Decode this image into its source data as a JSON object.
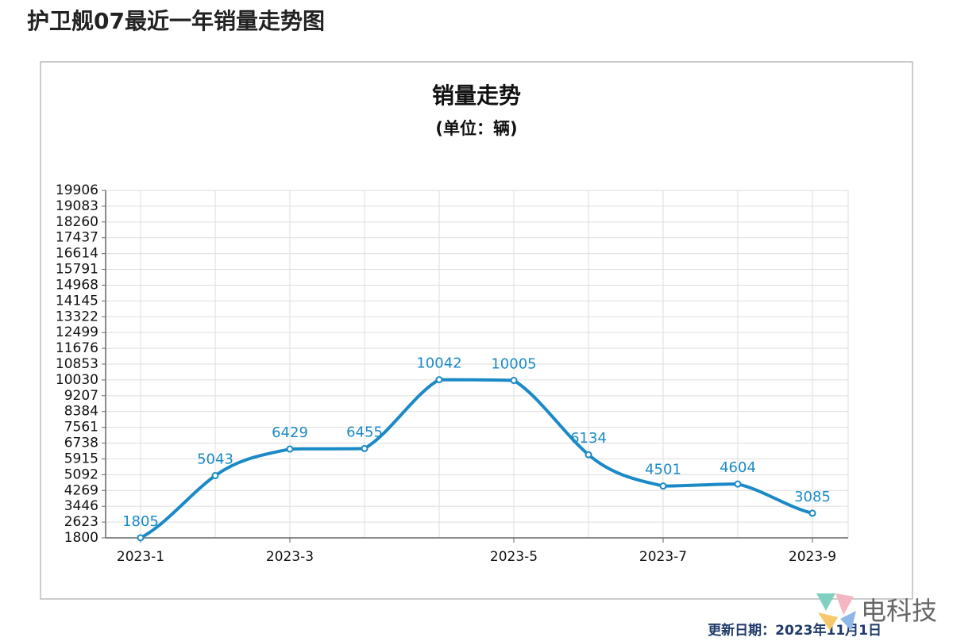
{
  "header": {
    "title": "护卫舰07最近一年销量走势图"
  },
  "chart_data": {
    "type": "line",
    "title": "销量走势",
    "subtitle": "(单位：辆)",
    "categories": [
      "2023-1",
      null,
      "2023-3",
      null,
      null,
      "2023-5",
      null,
      "2023-7",
      null,
      "2023-9"
    ],
    "series": [
      {
        "name": "销量",
        "color": "#1a8ac6",
        "values": [
          1805,
          5043,
          6429,
          6455,
          10042,
          10005,
          6134,
          4501,
          4604,
          3085
        ]
      }
    ],
    "ylim": [
      1800,
      19906
    ],
    "yticks": [
      1800,
      2623,
      3446,
      4269,
      5092,
      5915,
      6738,
      7561,
      8384,
      9207,
      10030,
      10853,
      11676,
      12499,
      13322,
      14145,
      14968,
      15791,
      16614,
      17437,
      18260,
      19083,
      19906
    ],
    "grid": true
  },
  "footer": {
    "update": "更新日期：2023年11月1日",
    "brand": "电科技"
  }
}
